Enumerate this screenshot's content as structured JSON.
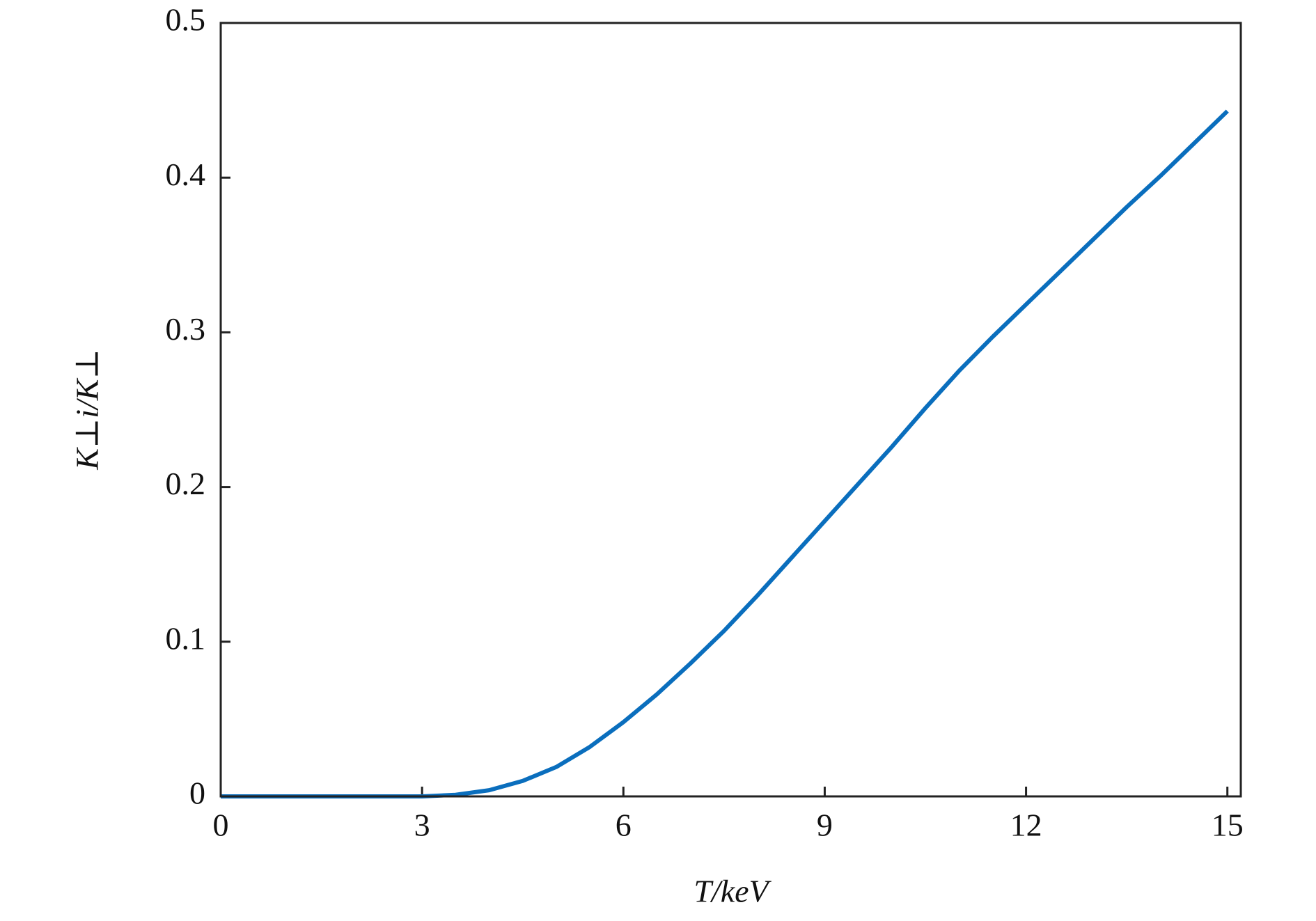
{
  "chart_data": {
    "type": "line",
    "xlabel": "T/keV",
    "ylabel": "K⊥i/K⊥",
    "x": [
      0,
      0.5,
      1,
      1.5,
      2,
      2.5,
      3,
      3.5,
      4,
      4.5,
      5,
      5.5,
      6,
      6.5,
      7,
      7.5,
      8,
      8.5,
      9,
      9.5,
      10,
      10.5,
      11,
      11.5,
      12,
      12.5,
      13,
      13.5,
      14,
      14.5,
      15
    ],
    "values": [
      0,
      0,
      0,
      0,
      0,
      0,
      0,
      0.001,
      0.004,
      0.01,
      0.019,
      0.032,
      0.048,
      0.066,
      0.086,
      0.107,
      0.13,
      0.154,
      0.178,
      0.202,
      0.226,
      0.251,
      0.275,
      0.297,
      0.318,
      0.339,
      0.36,
      0.381,
      0.401,
      0.422,
      0.443
    ],
    "color": "#0a6ebd",
    "xlim": [
      0,
      15.2
    ],
    "xticks": [
      0,
      3,
      6,
      9,
      12,
      15
    ],
    "ylim": [
      0,
      0.5
    ],
    "yticks": [
      0,
      0.1,
      0.2,
      0.3,
      0.4,
      0.5
    ],
    "grid": false
  }
}
